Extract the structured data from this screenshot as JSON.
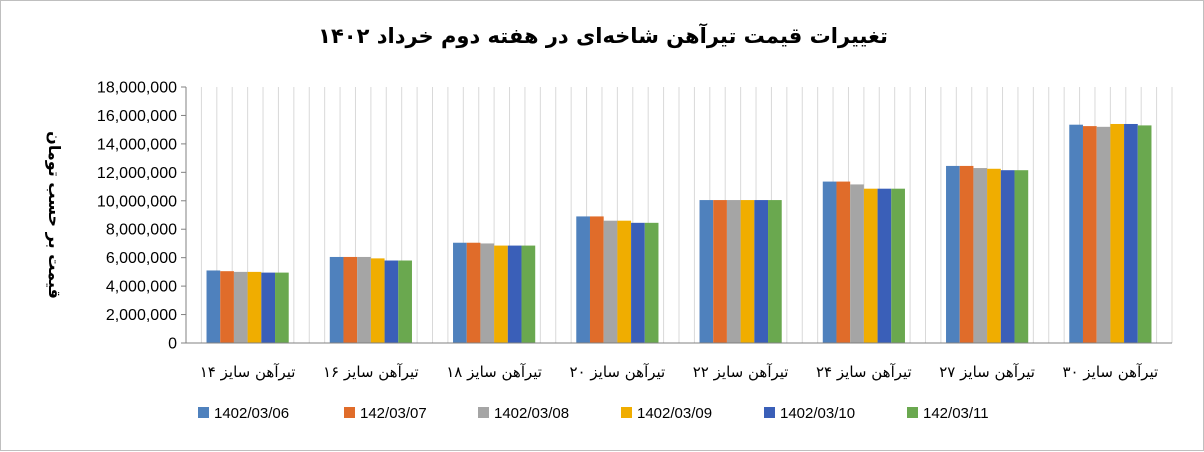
{
  "chart_data": {
    "type": "bar",
    "title": "تغییرات قیمت تیرآهن شاخه‌ای در هفته دوم خرداد ۱۴۰۲",
    "xlabel": "",
    "ylabel": "قیمت بر حسب تومان",
    "ylim": [
      0,
      18000000
    ],
    "yticks": [
      0,
      2000000,
      4000000,
      6000000,
      8000000,
      10000000,
      12000000,
      14000000,
      16000000,
      18000000
    ],
    "ytick_labels": [
      "0",
      "2,000,000",
      "4,000,000",
      "6,000,000",
      "8,000,000",
      "10,000,000",
      "12,000,000",
      "14,000,000",
      "16,000,000",
      "18,000,000"
    ],
    "grid": "vertical minor lines",
    "legend_position": "bottom",
    "categories": [
      "تیرآهن سایز ۱۴",
      "تیرآهن سایز ۱۶",
      "تیرآهن سایز ۱۸",
      "تیرآهن سایز ۲۰",
      "تیرآهن سایز ۲۲",
      "تیرآهن سایز ۲۴",
      "تیرآهن سایز ۲۷",
      "تیرآهن سایز ۳۰"
    ],
    "series": [
      {
        "name": "1402/03/06",
        "color": "#4f81bd",
        "values": [
          5100000,
          6050000,
          7050000,
          8900000,
          10050000,
          11350000,
          12450000,
          15350000
        ]
      },
      {
        "name": "142/03/07",
        "color": "#e06c2a",
        "values": [
          5050000,
          6050000,
          7050000,
          8900000,
          10050000,
          11350000,
          12450000,
          15250000
        ]
      },
      {
        "name": "1402/03/08",
        "color": "#a5a5a5",
        "values": [
          5000000,
          6050000,
          7000000,
          8600000,
          10050000,
          11150000,
          12300000,
          15200000
        ]
      },
      {
        "name": "1402/03/09",
        "color": "#f0ad00",
        "values": [
          5000000,
          5950000,
          6850000,
          8600000,
          10050000,
          10850000,
          12250000,
          15400000
        ]
      },
      {
        "name": "1402/03/10",
        "color": "#3a5fb8",
        "values": [
          4950000,
          5800000,
          6850000,
          8450000,
          10050000,
          10850000,
          12150000,
          15400000
        ]
      },
      {
        "name": "142/03/11",
        "color": "#6aa84f",
        "values": [
          4950000,
          5800000,
          6850000,
          8450000,
          10050000,
          10850000,
          12150000,
          15300000
        ]
      }
    ]
  }
}
